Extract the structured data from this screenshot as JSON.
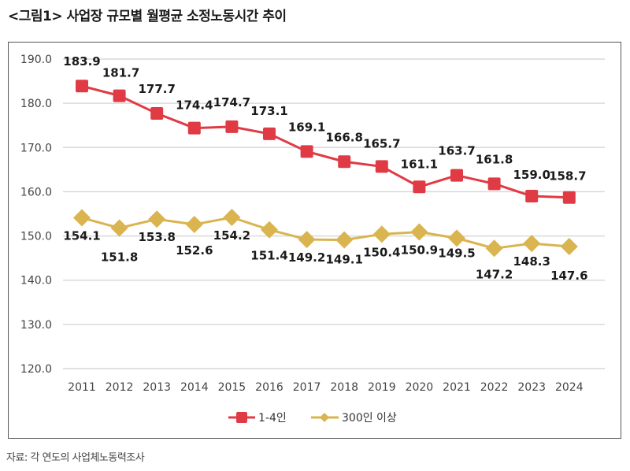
{
  "title": "<그림1> 사업장 규모별 월평균 소정노동시간 추이",
  "source": "자료: 각 연도의 사업체노동력조사",
  "colors": {
    "series1": "#e03a45",
    "series2": "#d9b44f",
    "grid": "#d9d9d9"
  },
  "chart_data": {
    "type": "line",
    "title": "<그림1> 사업장 규모별 월평균 소정노동시간 추이",
    "xlabel": "",
    "ylabel": "",
    "x": [
      "2011",
      "2012",
      "2013",
      "2014",
      "2015",
      "2016",
      "2017",
      "2018",
      "2019",
      "2020",
      "2021",
      "2022",
      "2023",
      "2024"
    ],
    "ylim": [
      120,
      190
    ],
    "yticks": [
      "120.0",
      "130.0",
      "140.0",
      "150.0",
      "160.0",
      "170.0",
      "180.0",
      "190.0"
    ],
    "grid": true,
    "legend": "bottom-center",
    "series": [
      {
        "name": "1-4인",
        "marker": "square",
        "color": "#e03a45",
        "values": [
          183.9,
          181.7,
          177.7,
          174.4,
          174.7,
          173.1,
          169.1,
          166.8,
          165.7,
          161.1,
          163.7,
          161.8,
          159.0,
          158.7
        ],
        "labels": [
          "183.9",
          "181.7",
          "177.7",
          "174.4",
          "174.7",
          "173.1",
          "169.1",
          "166.8",
          "165.7",
          "161.1",
          "163.7",
          "161.8",
          "159.0",
          "158.7"
        ]
      },
      {
        "name": "300인 이상",
        "marker": "diamond",
        "color": "#d9b44f",
        "values": [
          154.1,
          151.8,
          153.8,
          152.6,
          154.2,
          151.4,
          149.2,
          149.1,
          150.4,
          150.9,
          149.5,
          147.2,
          148.3,
          147.6
        ],
        "labels": [
          "154.1",
          "151.8",
          "153.8",
          "152.6",
          "154.2",
          "151.4",
          "149.2",
          "149.1",
          "150.4",
          "150.9",
          "149.5",
          "147.2",
          "148.3",
          "147.6"
        ]
      }
    ]
  }
}
